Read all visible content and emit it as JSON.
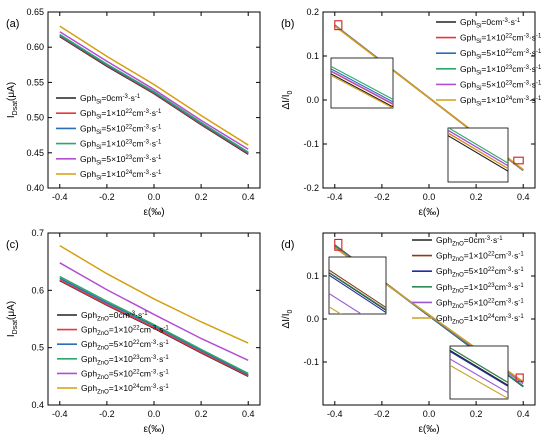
{
  "chart_data": [
    {
      "panel": "(a)",
      "type": "line",
      "xlabel": "ε(‰)",
      "ylabel": "I_Dsat(μA)",
      "ylabel_main": "I",
      "ylabel_sub": "Dsat",
      "ylabel_tail": "(μA)",
      "xlim": [
        -0.45,
        0.45
      ],
      "ylim": [
        0.4,
        0.65
      ],
      "xticks": [
        -0.4,
        -0.2,
        0.0,
        0.2,
        0.4
      ],
      "xtick_labels": [
        "-0.4",
        "-0.2",
        "0.0",
        "0.2",
        "0.4"
      ],
      "yticks": [
        0.4,
        0.45,
        0.5,
        0.55,
        0.6,
        0.65
      ],
      "ytick_labels": [
        "0.40",
        "0.45",
        "0.50",
        "0.55",
        "0.60",
        "0.65"
      ],
      "x": [
        -0.4,
        -0.2,
        0.0,
        0.2,
        0.4
      ],
      "legend_position": "center-left",
      "series": [
        {
          "name": "Gph_Si=0cm^-3·s^-1",
          "leg_pre": "Gph",
          "leg_sub": "Si",
          "leg_mid": "=0cm",
          "leg_sup": "-3",
          "leg_post": "·s",
          "leg_sup2": "-1",
          "color": "#222222",
          "values": [
            0.615,
            0.573,
            0.534,
            0.49,
            0.448
          ]
        },
        {
          "name": "Gph_Si=1×10^22cm^-3·s^-1",
          "leg_pre": "Gph",
          "leg_sub": "Si",
          "leg_mid": "=1×10",
          "leg_sup": "22",
          "leg_mid2": "cm",
          "leg_sup1b": "-3",
          "leg_post": "·s",
          "leg_sup2": "-1",
          "color": "#e8363b",
          "values": [
            0.616,
            0.574,
            0.535,
            0.491,
            0.449
          ]
        },
        {
          "name": "Gph_Si=5×10^22cm^-3·s^-1",
          "leg_pre": "Gph",
          "leg_sub": "Si",
          "leg_mid": "=5×10",
          "leg_sup": "22",
          "leg_mid2": "cm",
          "leg_sup1b": "-3",
          "leg_post": "·s",
          "leg_sup2": "-1",
          "color": "#2a6fb7",
          "values": [
            0.617,
            0.575,
            0.536,
            0.492,
            0.45
          ]
        },
        {
          "name": "Gph_Si=1×10^23cm^-3·s^-1",
          "leg_pre": "Gph",
          "leg_sub": "Si",
          "leg_mid": "=1×10",
          "leg_sup": "23",
          "leg_mid2": "cm",
          "leg_sup1b": "-3",
          "leg_post": "·s",
          "leg_sup2": "-1",
          "color": "#2ea86a",
          "values": [
            0.618,
            0.576,
            0.537,
            0.493,
            0.451
          ]
        },
        {
          "name": "Gph_Si=5×10^23cm^-3·s^-1",
          "leg_pre": "Gph",
          "leg_sub": "Si",
          "leg_mid": "=5×10",
          "leg_sup": "23",
          "leg_mid2": "cm",
          "leg_sup1b": "-3",
          "leg_post": "·s",
          "leg_sup2": "-1",
          "color": "#b24fd1",
          "values": [
            0.622,
            0.58,
            0.54,
            0.496,
            0.455
          ]
        },
        {
          "name": "Gph_Si=1×10^24cm^-3·s^-1",
          "leg_pre": "Gph",
          "leg_sub": "Si",
          "leg_mid": "=1×10",
          "leg_sup": "24",
          "leg_mid2": "cm",
          "leg_sup1b": "-3",
          "leg_post": "·s",
          "leg_sup2": "-1",
          "color": "#d4a012",
          "values": [
            0.63,
            0.587,
            0.547,
            0.503,
            0.461
          ]
        }
      ]
    },
    {
      "panel": "(b)",
      "type": "line",
      "xlabel": "ε(‰)",
      "ylabel": "ΔI/I_0",
      "ylabel_main": "ΔI/I",
      "ylabel_sub": "0",
      "ylabel_tail": "",
      "xlim": [
        -0.45,
        0.45
      ],
      "ylim": [
        -0.2,
        0.2
      ],
      "xticks": [
        -0.4,
        -0.2,
        0.0,
        0.2,
        0.4
      ],
      "xtick_labels": [
        "-0.4",
        "-0.2",
        "0.0",
        "0.2",
        "0.4"
      ],
      "yticks": [
        -0.2,
        -0.1,
        0.0,
        0.1,
        0.2
      ],
      "ytick_labels": [
        "-0.2",
        "-0.1",
        "0.0",
        "0.1",
        "0.2"
      ],
      "x": [
        -0.4,
        0.4
      ],
      "legend_position": "top-right",
      "series": [
        {
          "name": "Gph_Si=0cm^-3·s^-1",
          "leg_pre": "Gph",
          "leg_sub": "Si",
          "leg_mid": "=0cm",
          "leg_sup": "-3",
          "leg_post": "·s",
          "leg_sup2": "-1",
          "color": "#222222",
          "values": [
            0.17,
            -0.16
          ]
        },
        {
          "name": "Gph_Si=1×10^22cm^-3·s^-1",
          "leg_pre": "Gph",
          "leg_sub": "Si",
          "leg_mid": "=1×10",
          "leg_sup": "22",
          "leg_mid2": "cm",
          "leg_sup1b": "-3",
          "leg_post": "·s",
          "leg_sup2": "-1",
          "color": "#e8363b",
          "values": [
            0.17,
            -0.16
          ]
        },
        {
          "name": "Gph_Si=5×10^22cm^-3·s^-1",
          "leg_pre": "Gph",
          "leg_sub": "Si",
          "leg_mid": "=5×10",
          "leg_sup": "22",
          "leg_mid2": "cm",
          "leg_sup1b": "-3",
          "leg_post": "·s",
          "leg_sup2": "-1",
          "color": "#2a6fb7",
          "values": [
            0.17,
            -0.16
          ]
        },
        {
          "name": "Gph_Si=1×10^23cm^-3·s^-1",
          "leg_pre": "Gph",
          "leg_sub": "Si",
          "leg_mid": "=1×10",
          "leg_sup": "23",
          "leg_mid2": "cm",
          "leg_sup1b": "-3",
          "leg_post": "·s",
          "leg_sup2": "-1",
          "color": "#2ea86a",
          "values": [
            0.17,
            -0.16
          ]
        },
        {
          "name": "Gph_Si=5×10^23cm^-3·s^-1",
          "leg_pre": "Gph",
          "leg_sub": "Si",
          "leg_mid": "=5×10",
          "leg_sup": "23",
          "leg_mid2": "cm",
          "leg_sup1b": "-3",
          "leg_post": "·s",
          "leg_sup2": "-1",
          "color": "#b24fd1",
          "values": [
            0.169,
            -0.159
          ]
        },
        {
          "name": "Gph_Si=1×10^24cm^-3·s^-1",
          "leg_pre": "Gph",
          "leg_sub": "Si",
          "leg_mid": "=1×10",
          "leg_sup": "24",
          "leg_mid2": "cm",
          "leg_sup1b": "-3",
          "leg_post": "·s",
          "leg_sup2": "-1",
          "color": "#d4a012",
          "values": [
            0.168,
            -0.158
          ]
        }
      ]
    },
    {
      "panel": "(c)",
      "type": "line",
      "xlabel": "ε(‰)",
      "ylabel": "I_Dsat(μA)",
      "ylabel_main": "I",
      "ylabel_sub": "Dsat",
      "ylabel_tail": "(μA)",
      "xlim": [
        -0.45,
        0.45
      ],
      "ylim": [
        0.4,
        0.7
      ],
      "xticks": [
        -0.4,
        -0.2,
        0.0,
        0.2,
        0.4
      ],
      "xtick_labels": [
        "-0.4",
        "-0.2",
        "0.0",
        "0.2",
        "0.4"
      ],
      "yticks": [
        0.4,
        0.5,
        0.6,
        0.7
      ],
      "ytick_labels": [
        "0.4",
        "0.5",
        "0.6",
        "0.7"
      ],
      "x": [
        -0.4,
        -0.2,
        0.0,
        0.2,
        0.4
      ],
      "legend_position": "bottom-center",
      "series": [
        {
          "name": "Gph_ZnO=0cm^-3·s^-1",
          "leg_pre": "Gph",
          "leg_sub": "ZnO",
          "leg_mid": "=0cm",
          "leg_sup": "-3",
          "leg_post": "·s",
          "leg_sup2": "-1",
          "color": "#222222",
          "values": [
            0.617,
            0.574,
            0.534,
            0.491,
            0.45
          ]
        },
        {
          "name": "Gph_ZnO=1×10^22cm^-3·s^-1",
          "leg_pre": "Gph",
          "leg_sub": "ZnO",
          "leg_mid": "=1×10",
          "leg_sup": "22",
          "leg_mid2": "cm",
          "leg_sup1b": "-3",
          "leg_post": "·s",
          "leg_sup2": "-1",
          "color": "#e8363b",
          "values": [
            0.618,
            0.575,
            0.535,
            0.492,
            0.451
          ]
        },
        {
          "name": "Gph_ZnO=5×10^22cm^-3·s^-1",
          "leg_pre": "Gph",
          "leg_sub": "ZnO",
          "leg_mid": "=5×10",
          "leg_sup": "22",
          "leg_mid2": "cm",
          "leg_sup1b": "-3",
          "leg_post": "·s",
          "leg_sup2": "-1",
          "color": "#2a6fb7",
          "values": [
            0.621,
            0.578,
            0.538,
            0.495,
            0.453
          ]
        },
        {
          "name": "Gph_ZnO=1×10^23cm^-3·s^-1",
          "leg_pre": "Gph",
          "leg_sub": "ZnO",
          "leg_mid": "=1×10",
          "leg_sup": "23",
          "leg_mid2": "cm",
          "leg_sup1b": "-3",
          "leg_post": "·s",
          "leg_sup2": "-1",
          "color": "#2ea86a",
          "values": [
            0.624,
            0.581,
            0.54,
            0.497,
            0.455
          ]
        },
        {
          "name": "Gph_ZnO=5×10^22cm^-3·s^-1",
          "leg_pre": "Gph",
          "leg_sub": "ZnO",
          "leg_mid": "=5×10",
          "leg_sup": "22",
          "leg_mid2": "cm",
          "leg_sup1b": "-3",
          "leg_post": "·s",
          "leg_sup2": "-1",
          "color": "#b24fd1",
          "values": [
            0.648,
            0.601,
            0.558,
            0.516,
            0.478
          ]
        },
        {
          "name": "Gph_ZnO=1×10^24cm^-3·s^-1",
          "leg_pre": "Gph",
          "leg_sub": "ZnO",
          "leg_mid": "=1×10",
          "leg_sup": "24",
          "leg_mid2": "cm",
          "leg_sup1b": "-3",
          "leg_post": "·s",
          "leg_sup2": "-1",
          "color": "#d4a012",
          "values": [
            0.678,
            0.629,
            0.585,
            0.545,
            0.508
          ]
        }
      ]
    },
    {
      "panel": "(d)",
      "type": "line",
      "xlabel": "ε(‰)",
      "ylabel": "ΔI/I_0",
      "ylabel_main": "ΔI/I",
      "ylabel_sub": "0",
      "ylabel_tail": "",
      "xlim": [
        -0.45,
        0.45
      ],
      "ylim": [
        -0.2,
        0.2
      ],
      "xticks": [
        -0.4,
        -0.2,
        0.0,
        0.2,
        0.4
      ],
      "xtick_labels": [
        "-0.4",
        "-0.2",
        "0.0",
        "0.2",
        "0.4"
      ],
      "yticks": [
        -0.1,
        0.0,
        0.1
      ],
      "ytick_labels": [
        "-0.1",
        "0.0",
        "0.1"
      ],
      "x": [
        -0.4,
        0.4
      ],
      "legend_position": "top-right",
      "series": [
        {
          "name": "Gph_ZnO=0cm^-3·s^-1",
          "leg_pre": "Gph",
          "leg_sub": "ZnO",
          "leg_mid": "=0cm",
          "leg_sup": "-3",
          "leg_post": "·s",
          "leg_sup2": "-1",
          "color": "#222222",
          "values": [
            0.172,
            -0.157
          ]
        },
        {
          "name": "Gph_ZnO=1×10^22cm^-3·s^-1",
          "leg_pre": "Gph",
          "leg_sub": "ZnO",
          "leg_mid": "=1×10",
          "leg_sup": "22",
          "leg_mid2": "cm",
          "leg_sup1b": "-3",
          "leg_post": "·s",
          "leg_sup2": "-1",
          "color": "#8b3a1a",
          "values": [
            0.172,
            -0.157
          ]
        },
        {
          "name": "Gph_ZnO=5×10^22cm^-3·s^-1",
          "leg_pre": "Gph",
          "leg_sub": "ZnO",
          "leg_mid": "=5×10",
          "leg_sup": "22",
          "leg_mid2": "cm",
          "leg_sup1b": "-3",
          "leg_post": "·s",
          "leg_sup2": "-1",
          "color": "#1f2f9e",
          "values": [
            0.171,
            -0.157
          ]
        },
        {
          "name": "Gph_ZnO=1×10^23cm^-3·s^-1",
          "leg_pre": "Gph",
          "leg_sub": "ZnO",
          "leg_mid": "=1×10",
          "leg_sup": "23",
          "leg_mid2": "cm",
          "leg_sup1b": "-3",
          "leg_post": "·s",
          "leg_sup2": "-1",
          "color": "#2e8b57",
          "values": [
            0.171,
            -0.156
          ]
        },
        {
          "name": "Gph_ZnO=5×10^22cm^-3·s^-1",
          "leg_pre": "Gph",
          "leg_sub": "ZnO",
          "leg_mid": "=5×10",
          "leg_sup": "22",
          "leg_mid2": "cm",
          "leg_sup1b": "-3",
          "leg_post": "·s",
          "leg_sup2": "-1",
          "color": "#9b59d0",
          "values": [
            0.168,
            -0.15
          ]
        },
        {
          "name": "Gph_ZnO=1×10^24cm^-3·s^-1",
          "leg_pre": "Gph",
          "leg_sub": "ZnO",
          "leg_mid": "=1×10",
          "leg_sup": "24",
          "leg_mid2": "cm",
          "leg_sup1b": "-3",
          "leg_post": "·s",
          "leg_sup2": "-1",
          "color": "#c9a227",
          "values": [
            0.166,
            -0.146
          ]
        }
      ]
    }
  ]
}
